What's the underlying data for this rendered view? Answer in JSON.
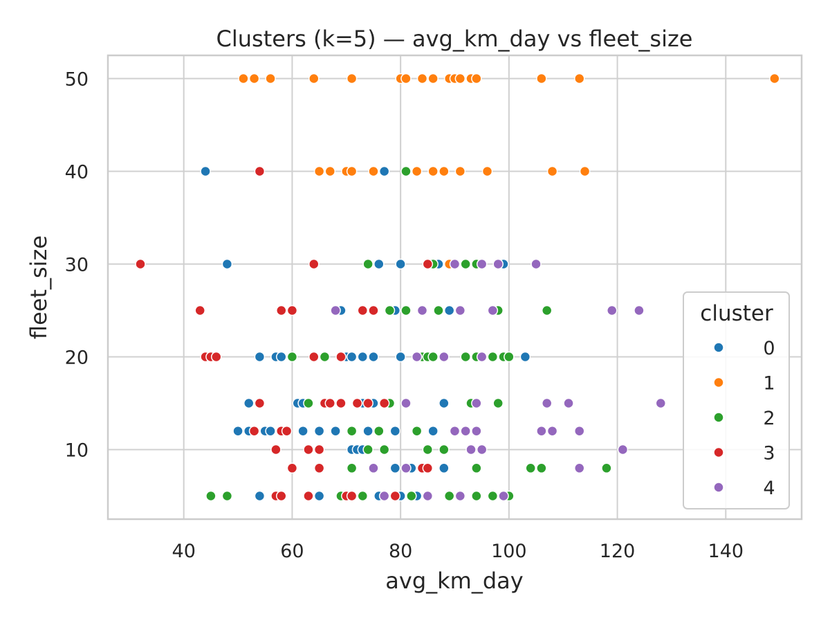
{
  "chart_data": {
    "type": "scatter",
    "title": "Clusters (k=5) — avg_km_day vs fleet_size",
    "xlabel": "avg_km_day",
    "ylabel": "fleet_size",
    "xlim": [
      26,
      154
    ],
    "ylim": [
      2.5,
      52.5
    ],
    "xticks": [
      40,
      60,
      80,
      100,
      120,
      140
    ],
    "yticks": [
      10,
      20,
      30,
      40,
      50
    ],
    "grid": true,
    "legend": {
      "title": "cluster",
      "position": "lower-right"
    },
    "series": [
      {
        "name": "0",
        "color": "#1f77b4",
        "points": [
          [
            44,
            40
          ],
          [
            77,
            40
          ],
          [
            48,
            30
          ],
          [
            76,
            30
          ],
          [
            80,
            30
          ],
          [
            87,
            30
          ],
          [
            99,
            30
          ],
          [
            69,
            25
          ],
          [
            79,
            25
          ],
          [
            89,
            25
          ],
          [
            54,
            20
          ],
          [
            57,
            20
          ],
          [
            58,
            20
          ],
          [
            66,
            20
          ],
          [
            70,
            20
          ],
          [
            71,
            20
          ],
          [
            73,
            20
          ],
          [
            75,
            20
          ],
          [
            80,
            20
          ],
          [
            103,
            20
          ],
          [
            52,
            15
          ],
          [
            61,
            15
          ],
          [
            62,
            15
          ],
          [
            73,
            15
          ],
          [
            75,
            15
          ],
          [
            88,
            15
          ],
          [
            50,
            12
          ],
          [
            52,
            12
          ],
          [
            55,
            12
          ],
          [
            56,
            12
          ],
          [
            62,
            12
          ],
          [
            65,
            12
          ],
          [
            68,
            12
          ],
          [
            74,
            12
          ],
          [
            79,
            12
          ],
          [
            86,
            12
          ],
          [
            71,
            10
          ],
          [
            72,
            10
          ],
          [
            73,
            10
          ],
          [
            79,
            8
          ],
          [
            82,
            8
          ],
          [
            85,
            8
          ],
          [
            88,
            8
          ],
          [
            54,
            5
          ],
          [
            65,
            5
          ],
          [
            76,
            5
          ],
          [
            80,
            5
          ],
          [
            83,
            5
          ]
        ]
      },
      {
        "name": "1",
        "color": "#ff7f0e",
        "points": [
          [
            51,
            50
          ],
          [
            53,
            50
          ],
          [
            56,
            50
          ],
          [
            64,
            50
          ],
          [
            71,
            50
          ],
          [
            80,
            50
          ],
          [
            81,
            50
          ],
          [
            84,
            50
          ],
          [
            86,
            50
          ],
          [
            89,
            50
          ],
          [
            90,
            50
          ],
          [
            91,
            50
          ],
          [
            93,
            50
          ],
          [
            94,
            50
          ],
          [
            106,
            50
          ],
          [
            113,
            50
          ],
          [
            149,
            50
          ],
          [
            65,
            40
          ],
          [
            67,
            40
          ],
          [
            70,
            40
          ],
          [
            71,
            40
          ],
          [
            75,
            40
          ],
          [
            83,
            40
          ],
          [
            86,
            40
          ],
          [
            88,
            40
          ],
          [
            91,
            40
          ],
          [
            96,
            40
          ],
          [
            108,
            40
          ],
          [
            114,
            40
          ],
          [
            89,
            30
          ]
        ]
      },
      {
        "name": "2",
        "color": "#2ca02c",
        "points": [
          [
            81,
            40
          ],
          [
            74,
            30
          ],
          [
            86,
            30
          ],
          [
            92,
            30
          ],
          [
            94,
            30
          ],
          [
            78,
            25
          ],
          [
            81,
            25
          ],
          [
            87,
            25
          ],
          [
            98,
            25
          ],
          [
            107,
            25
          ],
          [
            60,
            20
          ],
          [
            66,
            20
          ],
          [
            84,
            20
          ],
          [
            85,
            20
          ],
          [
            86,
            20
          ],
          [
            92,
            20
          ],
          [
            94,
            20
          ],
          [
            97,
            20
          ],
          [
            99,
            20
          ],
          [
            100,
            20
          ],
          [
            63,
            15
          ],
          [
            78,
            15
          ],
          [
            93,
            15
          ],
          [
            98,
            15
          ],
          [
            71,
            12
          ],
          [
            76,
            12
          ],
          [
            83,
            12
          ],
          [
            74,
            10
          ],
          [
            77,
            10
          ],
          [
            85,
            10
          ],
          [
            88,
            10
          ],
          [
            71,
            8
          ],
          [
            94,
            8
          ],
          [
            104,
            8
          ],
          [
            106,
            8
          ],
          [
            118,
            8
          ],
          [
            45,
            5
          ],
          [
            48,
            5
          ],
          [
            69,
            5
          ],
          [
            73,
            5
          ],
          [
            82,
            5
          ],
          [
            89,
            5
          ],
          [
            94,
            5
          ],
          [
            97,
            5
          ],
          [
            100,
            5
          ]
        ]
      },
      {
        "name": "3",
        "color": "#d62728",
        "points": [
          [
            54,
            40
          ],
          [
            32,
            30
          ],
          [
            64,
            30
          ],
          [
            85,
            30
          ],
          [
            43,
            25
          ],
          [
            58,
            25
          ],
          [
            60,
            25
          ],
          [
            73,
            25
          ],
          [
            75,
            25
          ],
          [
            44,
            20
          ],
          [
            45,
            20
          ],
          [
            46,
            20
          ],
          [
            64,
            20
          ],
          [
            69,
            20
          ],
          [
            54,
            15
          ],
          [
            66,
            15
          ],
          [
            67,
            15
          ],
          [
            69,
            15
          ],
          [
            72,
            15
          ],
          [
            74,
            15
          ],
          [
            77,
            15
          ],
          [
            53,
            12
          ],
          [
            58,
            12
          ],
          [
            59,
            12
          ],
          [
            57,
            10
          ],
          [
            63,
            10
          ],
          [
            65,
            10
          ],
          [
            60,
            8
          ],
          [
            65,
            8
          ],
          [
            84,
            8
          ],
          [
            85,
            8
          ],
          [
            57,
            5
          ],
          [
            58,
            5
          ],
          [
            63,
            5
          ],
          [
            70,
            5
          ],
          [
            71,
            5
          ],
          [
            79,
            5
          ]
        ]
      },
      {
        "name": "4",
        "color": "#9467bd",
        "points": [
          [
            90,
            30
          ],
          [
            95,
            30
          ],
          [
            98,
            30
          ],
          [
            105,
            30
          ],
          [
            68,
            25
          ],
          [
            84,
            25
          ],
          [
            91,
            25
          ],
          [
            97,
            25
          ],
          [
            119,
            25
          ],
          [
            124,
            25
          ],
          [
            83,
            20
          ],
          [
            88,
            20
          ],
          [
            95,
            20
          ],
          [
            81,
            15
          ],
          [
            94,
            15
          ],
          [
            107,
            15
          ],
          [
            111,
            15
          ],
          [
            128,
            15
          ],
          [
            90,
            12
          ],
          [
            92,
            12
          ],
          [
            94,
            12
          ],
          [
            106,
            12
          ],
          [
            108,
            12
          ],
          [
            113,
            12
          ],
          [
            93,
            10
          ],
          [
            95,
            10
          ],
          [
            121,
            10
          ],
          [
            75,
            8
          ],
          [
            81,
            8
          ],
          [
            113,
            8
          ],
          [
            77,
            5
          ],
          [
            85,
            5
          ],
          [
            91,
            5
          ],
          [
            99,
            5
          ]
        ]
      }
    ]
  }
}
